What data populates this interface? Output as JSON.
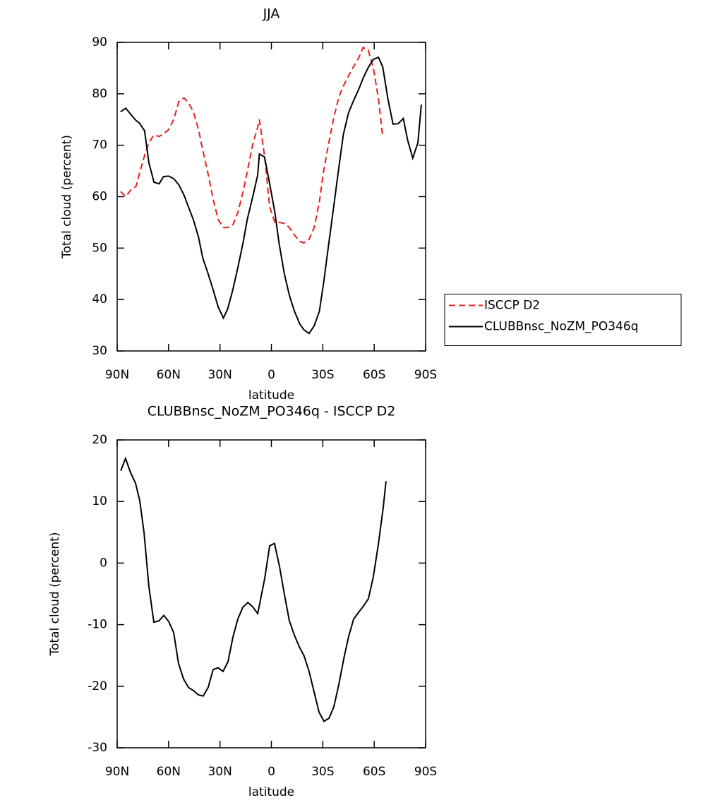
{
  "chart_data": [
    {
      "type": "line",
      "title": "JJA",
      "xlabel": "latitude",
      "ylabel": "Total cloud (percent)",
      "x": [
        88,
        85,
        82,
        79,
        77,
        74,
        71.5,
        68.5,
        65.5,
        63,
        60,
        57,
        54,
        51,
        48.5,
        45.5,
        42.5,
        40,
        37,
        34,
        31,
        28,
        25.5,
        22.5,
        19.5,
        16.5,
        14,
        11,
        8,
        7,
        4,
        1,
        -2,
        -4.5,
        -7.5,
        -10.5,
        -13.5,
        -16.5,
        -19,
        -22,
        -25,
        -28,
        -30.5,
        -33.5,
        -36.5,
        -39.5,
        -42,
        -45,
        -48,
        -51,
        -53.5,
        -56.5,
        -59.5,
        -62.5,
        -65,
        -68,
        -71,
        -74,
        -77,
        -79.5,
        -82.5,
        -85.5,
        -87.5
      ],
      "series": [
        {
          "name": "ISCCP D2",
          "color": "#e8201f",
          "line_style": "dashed",
          "values": [
            61,
            60,
            61.3,
            62,
            64.5,
            68,
            70.5,
            72,
            71.7,
            72.2,
            73,
            75,
            78.5,
            79.2,
            78.3,
            76.5,
            73,
            69,
            64.5,
            59.5,
            55.5,
            54,
            54,
            54.5,
            57,
            61,
            65,
            70,
            73.5,
            75,
            68,
            58,
            55,
            55,
            54.8,
            54,
            52.5,
            51.3,
            51,
            51.7,
            54,
            59,
            65,
            70.5,
            75.5,
            79.5,
            81.5,
            83.5,
            85.3,
            87,
            89,
            88.5,
            85,
            79,
            71.5,
            null,
            null,
            null,
            null,
            null,
            null,
            null,
            null
          ]
        },
        {
          "name": "CLUBBnsc_NoZM_PO346q",
          "color": "#000000",
          "line_style": "solid",
          "values": [
            76.5,
            77.2,
            76,
            74.8,
            74.3,
            72.8,
            66.6,
            62.8,
            62.5,
            63.9,
            64,
            63.5,
            62.3,
            60.3,
            58.1,
            55.5,
            52.1,
            48,
            45.1,
            41.9,
            38.5,
            36.4,
            38.2,
            41.9,
            46.3,
            51.1,
            55.7,
            59.8,
            64.2,
            68.3,
            67.7,
            62.5,
            57,
            50.9,
            45.1,
            40.8,
            37.7,
            35.3,
            34.1,
            33.4,
            34.9,
            37.7,
            43.3,
            50.9,
            58.4,
            66,
            72.1,
            76.3,
            78.7,
            80.9,
            83,
            85.1,
            86.7,
            87.1,
            85.2,
            79,
            74.1,
            74.2,
            75.2,
            71,
            67.5,
            70.5,
            77.9
          ]
        }
      ],
      "xlim": [
        90,
        -90
      ],
      "xticks": [
        {
          "value": 90,
          "label": "90N"
        },
        {
          "value": 60,
          "label": "60N"
        },
        {
          "value": 30,
          "label": "30N"
        },
        0,
        {
          "value": -30,
          "label": "30S"
        },
        {
          "value": -60,
          "label": "60S"
        },
        {
          "value": -90,
          "label": "90S"
        }
      ],
      "ylim": [
        30,
        90
      ],
      "yticks": [
        30,
        40,
        50,
        60,
        70,
        80,
        90
      ],
      "legend": "right"
    },
    {
      "type": "line",
      "title": "CLUBBnsc_NoZM_PO346q - ISCCP D2",
      "xlabel": "latitude",
      "ylabel": "Total cloud (percent)",
      "x": [
        87.9,
        85.1,
        82.2,
        79.3,
        76.8,
        74.3,
        71.5,
        68.6,
        65.7,
        62.8,
        59.9,
        57,
        54.2,
        51.3,
        48.4,
        45.5,
        42.6,
        39.8,
        36.9,
        34,
        31.1,
        28.2,
        25.3,
        22.5,
        19.6,
        16.7,
        13.8,
        10.9,
        8,
        6.8,
        3.9,
        1,
        -1.8,
        -4.7,
        -7.6,
        -10.5,
        -13.4,
        -16.3,
        -19.1,
        -22,
        -24.9,
        -27.8,
        -30.7,
        -33.6,
        -36.4,
        -39.3,
        -42.2,
        -45.1,
        -48,
        -50.9,
        -53.7,
        -56.6,
        -59.5,
        -62.4,
        -65.3,
        -66.9
      ],
      "series": [
        {
          "color": "#000000",
          "line_style": "solid",
          "values": [
            15,
            17,
            14.7,
            13,
            10.1,
            4.9,
            -3.8,
            -9.6,
            -9.4,
            -8.5,
            -9.5,
            -11.3,
            -16.3,
            -18.8,
            -20.2,
            -20.7,
            -21.4,
            -21.6,
            -20.2,
            -17.3,
            -17,
            -17.6,
            -16,
            -12.1,
            -9.1,
            -7.2,
            -6.4,
            -7.1,
            -8.2,
            -6.6,
            -2.5,
            2.8,
            3.2,
            -0.5,
            -5.1,
            -9.4,
            -11.7,
            -13.6,
            -15.1,
            -17.6,
            -20.9,
            -24.2,
            -25.7,
            -25.2,
            -23.4,
            -19.8,
            -15.6,
            -11.9,
            -9.1,
            -8,
            -7,
            -5.8,
            -2.2,
            3,
            9.1,
            13.3
          ]
        }
      ],
      "xlim": [
        90,
        -90
      ],
      "xticks": [
        {
          "value": 90,
          "label": "90N"
        },
        {
          "value": 60,
          "label": "60N"
        },
        {
          "value": 30,
          "label": "30N"
        },
        0,
        {
          "value": -30,
          "label": "30S"
        },
        {
          "value": -60,
          "label": "60S"
        },
        {
          "value": -90,
          "label": "90S"
        }
      ],
      "ylim": [
        -30,
        20
      ],
      "yticks": [
        -30,
        -20,
        -10,
        0,
        10,
        20
      ]
    }
  ]
}
